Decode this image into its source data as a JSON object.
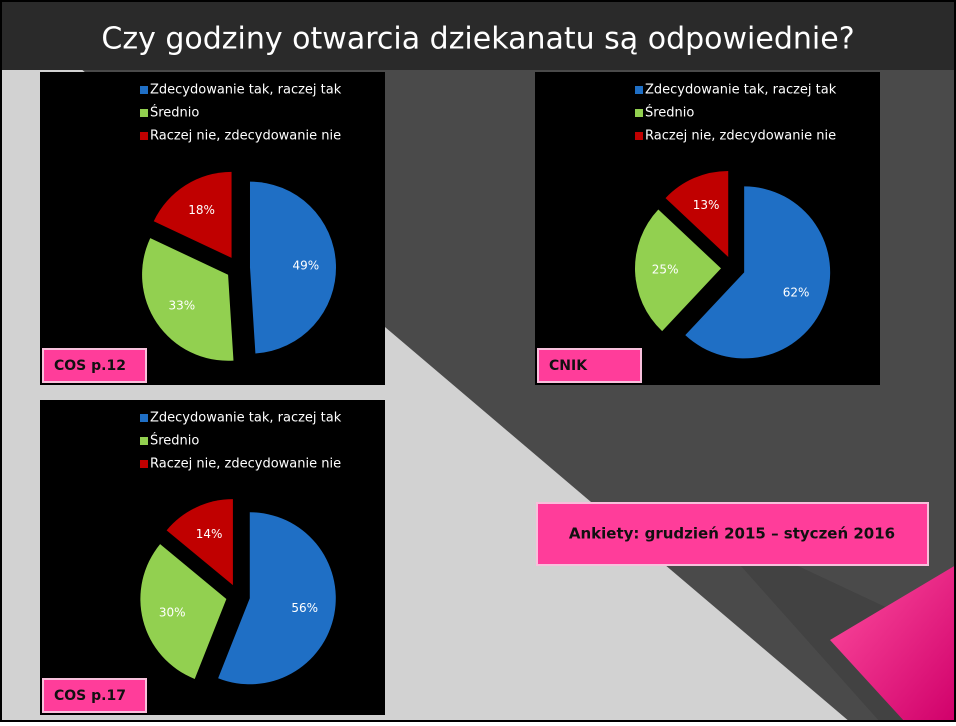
{
  "title": "Czy godziny otwarcia dziekanatu są odpowiednie?",
  "note": "Ankiety: grudzień 2015 – styczeń 2016",
  "chart_data": [
    {
      "type": "pie",
      "subtitle": "COS p.12",
      "categories": [
        "Zdecydowanie tak, raczej tak",
        "Średnio",
        "Raczej nie, zdecydowanie nie"
      ],
      "values": [
        49,
        33,
        18
      ],
      "value_labels": [
        "49%",
        "33%",
        "18%"
      ],
      "colors": [
        "#1f6fc5",
        "#92d050",
        "#c00000"
      ]
    },
    {
      "type": "pie",
      "subtitle": "CNIK",
      "categories": [
        "Zdecydowanie tak, raczej tak",
        "Średnio",
        "Raczej nie, zdecydowanie nie"
      ],
      "values": [
        62,
        25,
        13
      ],
      "value_labels": [
        "62%",
        "25%",
        "13%"
      ],
      "colors": [
        "#1f6fc5",
        "#92d050",
        "#c00000"
      ]
    },
    {
      "type": "pie",
      "subtitle": "COS p.17",
      "categories": [
        "Zdecydowanie tak, raczej tak",
        "Średnio",
        "Raczej nie, zdecydowanie nie"
      ],
      "values": [
        56,
        30,
        14
      ],
      "value_labels": [
        "56%",
        "30%",
        "14%"
      ],
      "colors": [
        "#1f6fc5",
        "#92d050",
        "#c00000"
      ]
    }
  ]
}
